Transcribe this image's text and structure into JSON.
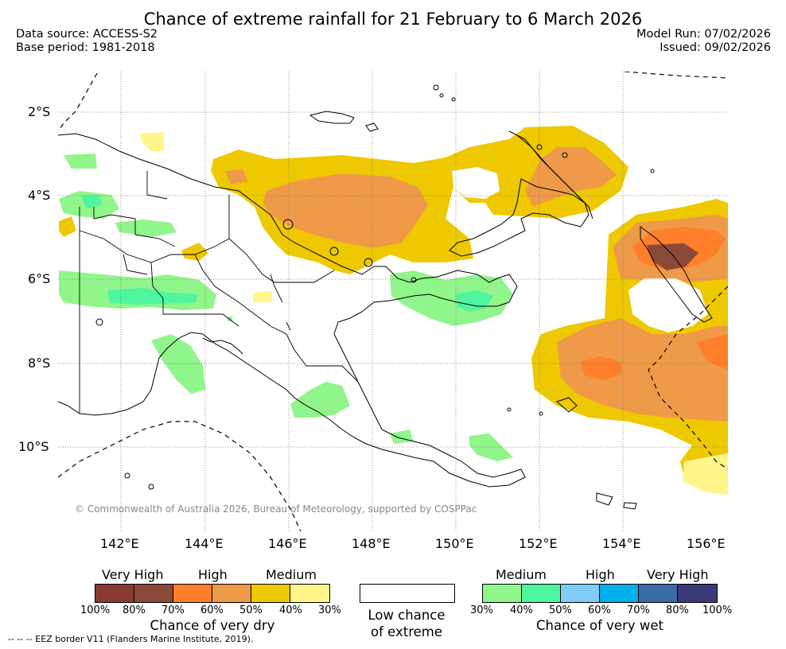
{
  "header": {
    "title": "Chance of extreme rainfall for 21 February to 6 March 2026",
    "data_source": "Data source: ACCESS-S2",
    "base_period": "Base period: 1981-2018",
    "model_run": "Model Run: 07/02/2026",
    "issued": "Issued: 09/02/2026"
  },
  "map": {
    "lat_labels": [
      "2°S",
      "4°S",
      "6°S",
      "8°S",
      "10°S"
    ],
    "lon_labels": [
      "142°E",
      "144°E",
      "146°E",
      "148°E",
      "150°E",
      "152°E",
      "154°E",
      "156°E"
    ],
    "copyright": "© Commonwealth of Australia 2026, Bureau of Meteorology, supported by COSPPac"
  },
  "legend": {
    "dry": {
      "groups": [
        "Very High",
        "High",
        "Medium"
      ],
      "colors": [
        "#8b3a30",
        "#8b4a38",
        "#ff7f2a",
        "#ee9a48",
        "#eec800",
        "#fff58a"
      ],
      "ticks": [
        "100%",
        "80%",
        "70%",
        "60%",
        "50%",
        "40%",
        "30%"
      ],
      "caption": "Chance of very dry"
    },
    "low": {
      "color": "#ffffff",
      "caption_line1": "Low chance",
      "caption_line2": "of extreme"
    },
    "wet": {
      "groups": [
        "Medium",
        "High",
        "Very High"
      ],
      "colors": [
        "#90f58a",
        "#50f5a0",
        "#80ccf8",
        "#00b0ea",
        "#3a6aa8",
        "#3a3a78"
      ],
      "ticks": [
        "30%",
        "40%",
        "50%",
        "60%",
        "70%",
        "80%",
        "100%"
      ],
      "caption": "Chance of very wet"
    }
  },
  "footer": {
    "eez_note": "--  --  -- EEZ border V11 (Flanders Marine Institute, 2019)."
  }
}
